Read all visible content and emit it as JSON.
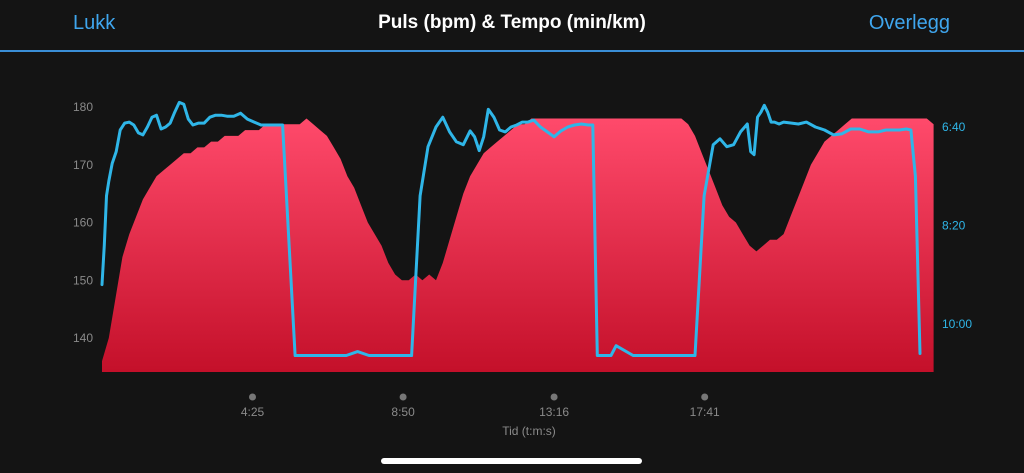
{
  "header": {
    "close_label": "Lukk",
    "title": "Puls (bpm) & Tempo (min/km)",
    "overlay_label": "Overlegg"
  },
  "colors": {
    "accent": "#3fa6ee",
    "hr_fill_top": "#ff4a6b",
    "hr_fill_bottom": "#c4102a",
    "pace_line": "#2fb6e8",
    "background": "#141414",
    "axis_text": "#8a8a8a",
    "right_axis_text": "#2fb6e8"
  },
  "chart_data": {
    "type": "area",
    "title": "Puls (bpm) & Tempo (min/km)",
    "xlabel": "Tid (t:m:s)",
    "x_unit": "seconds",
    "xlim": [
      0,
      1470
    ],
    "x_ticks": [
      {
        "value": 265,
        "label": "4:25"
      },
      {
        "value": 530,
        "label": "8:50"
      },
      {
        "value": 796,
        "label": "13:16"
      },
      {
        "value": 1061,
        "label": "17:41"
      }
    ],
    "y_left": {
      "label": "Puls (bpm)",
      "lim": [
        135,
        182
      ],
      "ticks": [
        140,
        150,
        160,
        170,
        180
      ]
    },
    "y_right": {
      "label": "Tempo (min/km)",
      "lim_seconds_per_km": [
        370,
        655
      ],
      "ticks": [
        {
          "value": 400,
          "label": "6:40"
        },
        {
          "value": 500,
          "label": "8:20"
        },
        {
          "value": 600,
          "label": "10:00"
        }
      ]
    },
    "series": [
      {
        "name": "Puls",
        "axis": "left",
        "x": [
          0,
          12,
          24,
          36,
          48,
          60,
          72,
          84,
          96,
          108,
          120,
          132,
          144,
          156,
          168,
          180,
          192,
          204,
          216,
          228,
          240,
          252,
          264,
          276,
          288,
          300,
          312,
          324,
          336,
          348,
          360,
          372,
          384,
          396,
          408,
          420,
          432,
          444,
          456,
          468,
          480,
          492,
          504,
          516,
          528,
          540,
          552,
          564,
          576,
          588,
          600,
          612,
          624,
          636,
          648,
          660,
          672,
          684,
          696,
          708,
          720,
          732,
          744,
          756,
          768,
          780,
          792,
          804,
          816,
          828,
          840,
          852,
          864,
          876,
          888,
          900,
          912,
          924,
          936,
          948,
          960,
          972,
          984,
          996,
          1008,
          1020,
          1032,
          1044,
          1056,
          1068,
          1080,
          1092,
          1104,
          1116,
          1128,
          1140,
          1152,
          1164,
          1176,
          1188,
          1200,
          1212,
          1224,
          1236,
          1248,
          1260,
          1272,
          1284,
          1296,
          1308,
          1320,
          1332,
          1344,
          1356,
          1368,
          1380,
          1392,
          1404,
          1416,
          1428,
          1440,
          1452,
          1464
        ],
        "values": [
          136,
          140,
          147,
          154,
          158,
          161,
          164,
          166,
          168,
          169,
          170,
          171,
          172,
          172,
          173,
          173,
          174,
          174,
          175,
          175,
          175,
          176,
          176,
          176,
          177,
          177,
          177,
          177,
          177,
          177,
          178,
          177,
          176,
          175,
          173,
          171,
          168,
          166,
          163,
          160,
          158,
          156,
          153,
          151,
          150,
          150,
          151,
          150,
          151,
          150,
          153,
          157,
          161,
          165,
          168,
          170,
          172,
          173,
          174,
          175,
          176,
          177,
          177,
          178,
          178,
          178,
          178,
          178,
          178,
          178,
          178,
          178,
          178,
          178,
          178,
          178,
          178,
          178,
          178,
          178,
          178,
          178,
          178,
          178,
          178,
          178,
          177,
          175,
          172,
          169,
          166,
          163,
          161,
          160,
          158,
          156,
          155,
          156,
          157,
          157,
          158,
          161,
          164,
          167,
          170,
          172,
          174,
          175,
          176,
          177,
          178,
          178,
          178,
          178,
          178,
          178,
          178,
          178,
          178,
          178,
          178,
          178,
          177
        ],
        "style": "area"
      },
      {
        "name": "Tempo",
        "axis": "right",
        "x": [
          0,
          4,
          8,
          12,
          18,
          25,
          32,
          40,
          48,
          56,
          64,
          72,
          80,
          88,
          96,
          104,
          112,
          120,
          128,
          136,
          144,
          152,
          160,
          170,
          180,
          190,
          200,
          210,
          220,
          232,
          244,
          256,
          268,
          280,
          290,
          304,
          318,
          340,
          390,
          430,
          450,
          470,
          480,
          500,
          520,
          540,
          545,
          560,
          574,
          588,
          600,
          612,
          624,
          636,
          648,
          656,
          664,
          672,
          680,
          690,
          700,
          710,
          720,
          730,
          740,
          750,
          760,
          772,
          784,
          796,
          808,
          820,
          832,
          844,
          856,
          864,
          872,
          884,
          896,
          905,
          935,
          960,
          970,
          980,
          990,
          1020,
          1044,
          1060,
          1076,
          1088,
          1100,
          1112,
          1124,
          1136,
          1142,
          1148,
          1154,
          1160,
          1166,
          1172,
          1178,
          1184,
          1192,
          1200,
          1214,
          1226,
          1240,
          1256,
          1272,
          1288,
          1302,
          1318,
          1334,
          1350,
          1366,
          1380,
          1392,
          1404,
          1416,
          1424,
          1432,
          1440
        ],
        "values": [
          560,
          520,
          470,
          455,
          437,
          425,
          403,
          396,
          395,
          398,
          406,
          408,
          400,
          390,
          388,
          402,
          400,
          396,
          385,
          375,
          377,
          392,
          398,
          396,
          396,
          390,
          388,
          388,
          389,
          389,
          386,
          392,
          395,
          398,
          398,
          398,
          398,
          632,
          632,
          632,
          628,
          632,
          632,
          632,
          632,
          632,
          632,
          470,
          420,
          400,
          390,
          405,
          415,
          418,
          404,
          410,
          424,
          410,
          382,
          390,
          403,
          405,
          400,
          398,
          395,
          395,
          393,
          400,
          405,
          410,
          404,
          400,
          398,
          397,
          398,
          398,
          632,
          632,
          632,
          622,
          632,
          632,
          632,
          632,
          632,
          632,
          632,
          470,
          418,
          412,
          420,
          418,
          405,
          397,
          425,
          428,
          390,
          385,
          378,
          385,
          395,
          395,
          397,
          395,
          396,
          397,
          395,
          400,
          403,
          408,
          407,
          402,
          402,
          405,
          405,
          403,
          403,
          403,
          402,
          403,
          450,
          630
        ],
        "style": "line"
      }
    ],
    "grid": false,
    "legend": "none"
  }
}
